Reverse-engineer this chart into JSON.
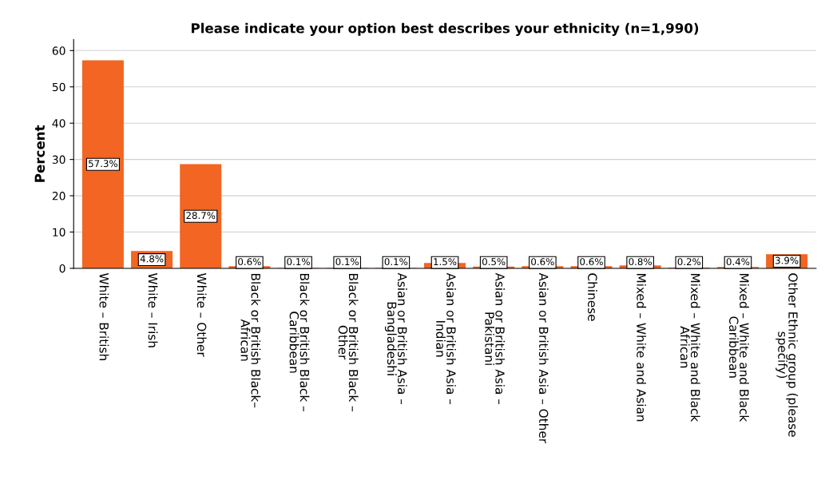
{
  "chart_data": {
    "type": "bar",
    "title": "Please indicate your option best describes your ethnicity (n=1,990)",
    "ylabel": "Percent",
    "categories": [
      "White – British",
      "White – Irish",
      "White – Other",
      "Black or British Black–\nAfrican",
      "Black or British Black –\nCaribbean",
      "Black or British Black –\nOther",
      "Asian or British Asia –\nBangladeshi",
      "Asian or British Asia –\nIndian",
      "Asian or British Asia –\nPakistani",
      "Asian or British Asia – Other",
      "Chinese",
      "Mixed – White and Asian",
      "Mixed – White and Black\nAfrican",
      "Mixed – White and Black\nCaribbean",
      "Other Ethnic group (please\nspecify)"
    ],
    "values": [
      57.3,
      4.8,
      28.7,
      0.6,
      0.1,
      0.1,
      0.1,
      1.5,
      0.5,
      0.6,
      0.6,
      0.8,
      0.2,
      0.4,
      3.9
    ],
    "value_labels": [
      "57.3%",
      "4.8%",
      "28.7%",
      "0.6%",
      "0.1%",
      "0.1%",
      "0.1%",
      "1.5%",
      "0.5%",
      "0.6%",
      "0.6%",
      "0.8%",
      "0.2%",
      "0.4%",
      "3.9%"
    ],
    "color": "#f26522",
    "ylim": [
      0,
      63
    ],
    "yticks": [
      0,
      10,
      20,
      30,
      40,
      50,
      60
    ],
    "grid": "y",
    "legend": false
  }
}
